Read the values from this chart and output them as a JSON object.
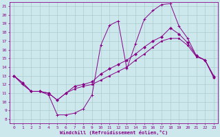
{
  "xlabel": "Windchill (Refroidissement éolien,°C)",
  "background_color": "#cce8ec",
  "grid_color": "#aacccc",
  "line_color": "#880088",
  "xlim": [
    -0.5,
    23.5
  ],
  "ylim": [
    7.5,
    21.5
  ],
  "xticks": [
    0,
    1,
    2,
    3,
    4,
    5,
    6,
    7,
    8,
    9,
    10,
    11,
    12,
    13,
    14,
    15,
    16,
    17,
    18,
    19,
    20,
    21,
    22,
    23
  ],
  "yticks": [
    8,
    9,
    10,
    11,
    12,
    13,
    14,
    15,
    16,
    17,
    18,
    19,
    20,
    21
  ],
  "line1_x": [
    0,
    1,
    2,
    3,
    4,
    5,
    6,
    7,
    8,
    9,
    10,
    11,
    12,
    13,
    14,
    15,
    16,
    17,
    18,
    19,
    20,
    21,
    22,
    23
  ],
  "line1_y": [
    13,
    12,
    11.2,
    11.2,
    10.8,
    8.5,
    8.5,
    8.7,
    9.2,
    10.8,
    16.5,
    18.8,
    19.3,
    13.8,
    16.7,
    19.5,
    20.5,
    21.2,
    21.3,
    18.7,
    17.3,
    15.3,
    14.8,
    13.0
  ],
  "line2_x": [
    0,
    1,
    2,
    3,
    4,
    5,
    6,
    7,
    8,
    9,
    10,
    11,
    12,
    13,
    14,
    15,
    16,
    17,
    18,
    19,
    20,
    21,
    22,
    23
  ],
  "line2_y": [
    13,
    12.2,
    11.2,
    11.2,
    11.0,
    10.2,
    11.0,
    11.8,
    12.0,
    12.3,
    13.2,
    13.8,
    14.3,
    14.8,
    15.5,
    16.3,
    17.0,
    17.5,
    18.5,
    17.8,
    16.8,
    15.3,
    14.8,
    12.8
  ],
  "line3_x": [
    0,
    1,
    2,
    3,
    4,
    5,
    6,
    7,
    8,
    9,
    10,
    11,
    12,
    13,
    14,
    15,
    16,
    17,
    18,
    19,
    20,
    21,
    22,
    23
  ],
  "line3_y": [
    13,
    12.2,
    11.2,
    11.2,
    11.0,
    10.2,
    11.0,
    11.5,
    11.8,
    12.0,
    12.5,
    13.0,
    13.5,
    14.0,
    14.8,
    15.5,
    16.3,
    17.0,
    17.3,
    17.3,
    16.5,
    15.2,
    14.8,
    12.8
  ]
}
